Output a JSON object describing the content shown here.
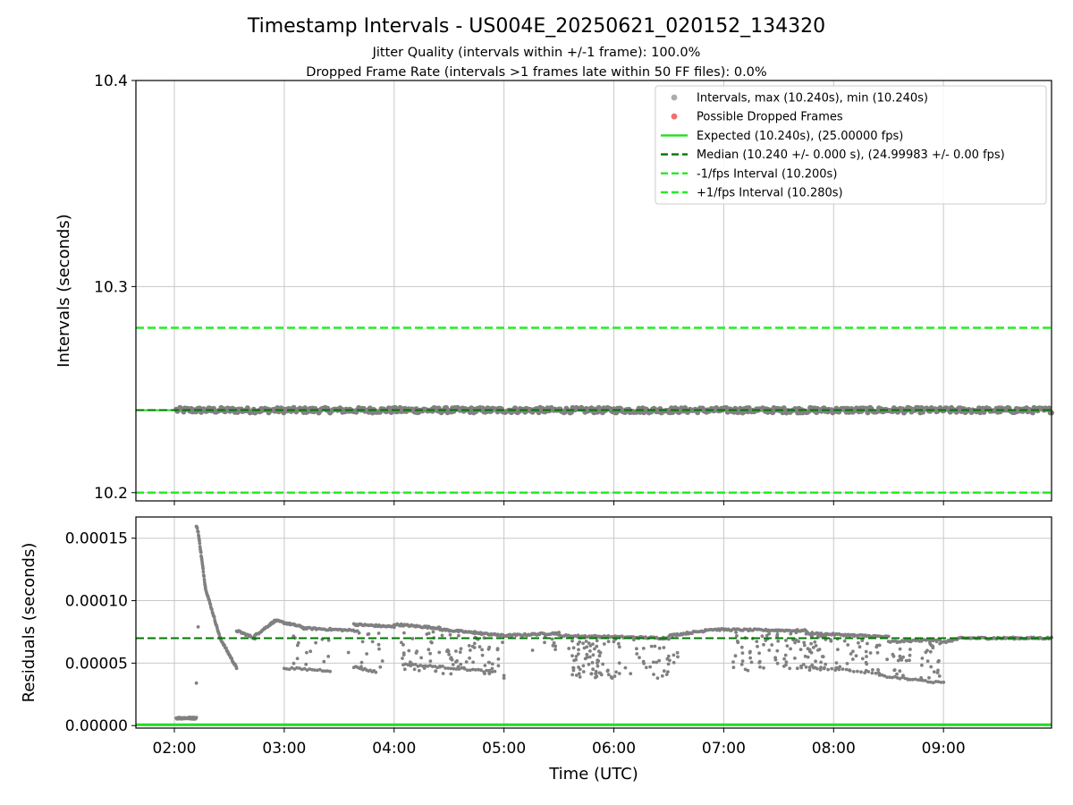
{
  "figure": {
    "title": "Timestamp Intervals - US004E_20250621_020152_134320",
    "subtitle_line1": "Jitter Quality (intervals within +/-1 frame): 100.0%",
    "subtitle_line2": "Dropped Frame Rate (intervals >1 frames late within 50 FF files): 0.0%"
  },
  "colors": {
    "points": "#808080",
    "dropped": "#f06060",
    "expected": "#22dd22",
    "median": "#007700",
    "interval_bounds": "#22ee22",
    "grid": "#c8c8c8"
  },
  "chart_data": [
    {
      "type": "scatter",
      "panel": "top",
      "title": "",
      "xlabel": "",
      "ylabel": "Intervals (seconds)",
      "xlim": [
        "01:39",
        "09:59"
      ],
      "ylim": [
        10.196,
        10.4
      ],
      "yticks": [
        "10.2",
        "10.3",
        "10.4"
      ],
      "grid": true,
      "legend_position": "top-right",
      "legend": [
        {
          "label": "Intervals, max (10.240s), min (10.240s)",
          "marker": "dot-gray"
        },
        {
          "label": "Possible Dropped Frames",
          "marker": "dot-red"
        },
        {
          "label": "Expected (10.240s), (25.00000 fps)",
          "marker": "solid-green"
        },
        {
          "label": "Median (10.240 +/- 0.000 s), (24.99983 +/- 0.00 fps)",
          "marker": "dashed-darkgreen"
        },
        {
          "label": "-1/fps Interval (10.200s)",
          "marker": "dashed-green"
        },
        {
          "label": "+1/fps Interval (10.280s)",
          "marker": "dashed-green"
        }
      ],
      "lines": {
        "expected": 10.24,
        "median": 10.24007,
        "minus_interval": 10.2,
        "plus_interval": 10.28
      },
      "points": {
        "x_start": "02:01",
        "x_end": "09:59",
        "y_value": 10.24
      }
    },
    {
      "type": "scatter",
      "panel": "bottom",
      "title": "",
      "xlabel": "Time (UTC)",
      "ylabel": "Residuals (seconds)",
      "xlim": [
        "01:39",
        "09:59"
      ],
      "ylim": [
        -2e-06,
        0.000167
      ],
      "yticks": [
        "0.00000",
        "0.00005",
        "0.00010",
        "0.00015"
      ],
      "xticks": [
        "02:00",
        "03:00",
        "04:00",
        "05:00",
        "06:00",
        "07:00",
        "08:00",
        "09:00"
      ],
      "grid": true,
      "lines": {
        "expected": 0.0,
        "median": 7e-05
      },
      "segments": [
        {
          "x": [
            "02:01",
            "02:12"
          ],
          "y": [
            6e-06,
            6e-06
          ],
          "density": 50
        },
        {
          "x": [
            "02:12",
            "02:13"
          ],
          "y": [
            0.00016,
            0.000155
          ],
          "density": 4
        },
        {
          "x": [
            "02:13",
            "02:17"
          ],
          "y": [
            0.000155,
            0.00011
          ],
          "density": 24
        },
        {
          "x": [
            "02:17",
            "02:25"
          ],
          "y": [
            0.00011,
            7e-05
          ],
          "density": 30
        },
        {
          "x": [
            "02:25",
            "02:34"
          ],
          "y": [
            7e-05,
            4.6e-05
          ],
          "density": 30
        },
        {
          "x": [
            "02:34",
            "02:44"
          ],
          "y": [
            7.6e-05,
            7e-05
          ],
          "density": 22
        },
        {
          "x": [
            "02:44",
            "02:55"
          ],
          "y": [
            7.2e-05,
            8.4e-05
          ],
          "density": 28
        },
        {
          "x": [
            "02:55",
            "03:10"
          ],
          "y": [
            8.4e-05,
            7.9e-05
          ],
          "density": 34
        },
        {
          "x": [
            "03:10",
            "03:40"
          ],
          "y": [
            7.8e-05,
            7.6e-05
          ],
          "density": 40
        },
        {
          "x": [
            "03:38",
            "04:00"
          ],
          "y": [
            8.1e-05,
            7.9e-05
          ],
          "density": 40
        },
        {
          "x": [
            "04:00",
            "04:25"
          ],
          "y": [
            8.1e-05,
            7.8e-05
          ],
          "density": 45
        },
        {
          "x": [
            "04:25",
            "05:00"
          ],
          "y": [
            7.7e-05,
            7.2e-05
          ],
          "density": 55
        },
        {
          "x": [
            "05:00",
            "05:30"
          ],
          "y": [
            7.2e-05,
            7.4e-05
          ],
          "density": 45
        },
        {
          "x": [
            "05:30",
            "06:30"
          ],
          "y": [
            7.2e-05,
            7e-05
          ],
          "density": 80
        },
        {
          "x": [
            "06:30",
            "06:50"
          ],
          "y": [
            7.2e-05,
            7.6e-05
          ],
          "density": 30
        },
        {
          "x": [
            "06:50",
            "07:45"
          ],
          "y": [
            7.7e-05,
            7.6e-05
          ],
          "density": 70
        },
        {
          "x": [
            "07:45",
            "08:30"
          ],
          "y": [
            7.4e-05,
            7.1e-05
          ],
          "density": 55
        },
        {
          "x": [
            "08:30",
            "08:58"
          ],
          "y": [
            6.7e-05,
            6.9e-05
          ],
          "density": 30
        },
        {
          "x": [
            "08:58",
            "09:10"
          ],
          "y": [
            6.6e-05,
            7e-05
          ],
          "density": 18
        },
        {
          "x": [
            "09:10",
            "09:59"
          ],
          "y": [
            7e-05,
            7e-05
          ],
          "density": 70
        },
        {
          "x": [
            "03:00",
            "03:25"
          ],
          "y": [
            4.6e-05,
            4.4e-05
          ],
          "density": 18
        },
        {
          "x": [
            "03:38",
            "03:50"
          ],
          "y": [
            4.7e-05,
            4.3e-05
          ],
          "density": 12
        },
        {
          "x": [
            "04:05",
            "04:25"
          ],
          "y": [
            4.9e-05,
            4.7e-05
          ],
          "density": 15
        },
        {
          "x": [
            "04:25",
            "04:55"
          ],
          "y": [
            4.7e-05,
            4.3e-05
          ],
          "density": 20
        },
        {
          "x": [
            "08:25",
            "09:00"
          ],
          "y": [
            4e-05,
            3.4e-05
          ],
          "density": 25
        },
        {
          "x": [
            "07:45",
            "08:25"
          ],
          "y": [
            4.7e-05,
            4.2e-05
          ],
          "density": 20
        }
      ],
      "scatter_regions": [
        {
          "x": [
            "03:05",
            "03:25"
          ],
          "y": [
            4.6e-05,
            7.4e-05
          ],
          "count": 14
        },
        {
          "x": [
            "03:35",
            "03:55"
          ],
          "y": [
            4.6e-05,
            7.5e-05
          ],
          "count": 14
        },
        {
          "x": [
            "04:03",
            "05:00"
          ],
          "y": [
            4.1e-05,
            7.6e-05
          ],
          "count": 85
        },
        {
          "x": [
            "05:15",
            "05:30"
          ],
          "y": [
            6e-05,
            7.2e-05
          ],
          "count": 8
        },
        {
          "x": [
            "05:35",
            "06:00"
          ],
          "y": [
            3.8e-05,
            7.1e-05
          ],
          "count": 70
        },
        {
          "x": [
            "06:00",
            "06:35"
          ],
          "y": [
            3.8e-05,
            7e-05
          ],
          "count": 40
        },
        {
          "x": [
            "07:05",
            "07:50"
          ],
          "y": [
            4.4e-05,
            7.5e-05
          ],
          "count": 80
        },
        {
          "x": [
            "07:50",
            "08:25"
          ],
          "y": [
            4.2e-05,
            7.3e-05
          ],
          "count": 55
        },
        {
          "x": [
            "08:25",
            "08:58"
          ],
          "y": [
            3.6e-05,
            6.8e-05
          ],
          "count": 45
        }
      ],
      "extra_points": [
        {
          "x": "02:12",
          "y": 3.4e-05
        },
        {
          "x": "02:13",
          "y": 7.9e-05
        },
        {
          "x": "05:00",
          "y": 3.8e-05
        },
        {
          "x": "05:00",
          "y": 4e-05
        }
      ]
    }
  ]
}
